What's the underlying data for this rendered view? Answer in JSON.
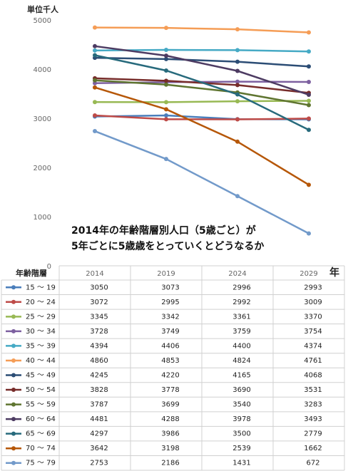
{
  "chart_data": {
    "type": "line",
    "unit_label": "単位千人",
    "x_axis_label": "年",
    "table_header": "年齢階層",
    "annotation": [
      "2014年の年齢階層別人口（5歳ごと）が",
      "5年ごとに5歳歳をとっていくとどうなるか"
    ],
    "categories": [
      "2014",
      "2019",
      "2024",
      "2029"
    ],
    "ylim": [
      0,
      5000
    ],
    "yticks": [
      0,
      1000,
      2000,
      3000,
      4000,
      5000
    ],
    "series": [
      {
        "name": "15 ～ 19",
        "color": "#4a7ebb",
        "values": [
          3050,
          3073,
          2996,
          2993
        ]
      },
      {
        "name": "20 ～ 24",
        "color": "#be4b48",
        "values": [
          3072,
          2995,
          2992,
          3009
        ]
      },
      {
        "name": "25 ～ 29",
        "color": "#98b954",
        "values": [
          3345,
          3342,
          3361,
          3370
        ]
      },
      {
        "name": "30 ～ 34",
        "color": "#7d60a0",
        "values": [
          3728,
          3749,
          3759,
          3754
        ]
      },
      {
        "name": "35 ～ 39",
        "color": "#46aac5",
        "values": [
          4394,
          4406,
          4400,
          4374
        ]
      },
      {
        "name": "40 ～ 44",
        "color": "#f59d56",
        "values": [
          4860,
          4853,
          4824,
          4761
        ]
      },
      {
        "name": "45 ～ 49",
        "color": "#2c4d75",
        "values": [
          4245,
          4220,
          4165,
          4068
        ]
      },
      {
        "name": "50 ～ 54",
        "color": "#772c2a",
        "values": [
          3828,
          3778,
          3690,
          3531
        ]
      },
      {
        "name": "55 ～ 59",
        "color": "#5f7530",
        "values": [
          3787,
          3699,
          3540,
          3283
        ]
      },
      {
        "name": "60 ～ 64",
        "color": "#4d3b62",
        "values": [
          4481,
          4288,
          3978,
          3493
        ]
      },
      {
        "name": "65 ～ 69",
        "color": "#276a7c",
        "values": [
          4297,
          3986,
          3500,
          2779
        ]
      },
      {
        "name": "70 ～ 74",
        "color": "#b65708",
        "values": [
          3642,
          3198,
          2539,
          1662
        ]
      },
      {
        "name": "75 ～ 79",
        "color": "#729aca",
        "values": [
          2753,
          2186,
          1431,
          672
        ]
      }
    ]
  }
}
